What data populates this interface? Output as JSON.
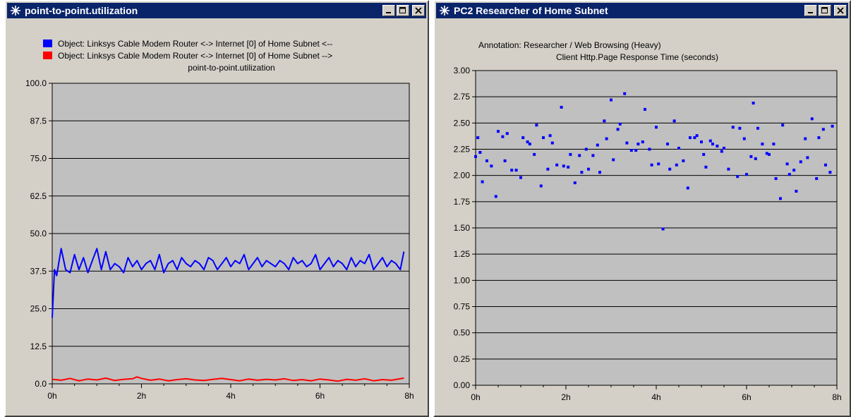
{
  "windows": [
    {
      "title": "point-to-point.utilization",
      "controls": [
        "minimize-icon",
        "maximize-icon",
        "close-icon"
      ],
      "legend": [
        {
          "label": "Object: Linksys Cable Modem Router <-> Internet [0] of Home Subnet <--",
          "color": "#0000ff"
        },
        {
          "label": "Object: Linksys Cable Modem Router <-> Internet [0] of Home Subnet -->",
          "color": "#ff0000"
        }
      ],
      "chart_title": "point-to-point.utilization"
    },
    {
      "title": "PC2 Researcher of Home Subnet",
      "controls": [
        "minimize-icon",
        "maximize-icon",
        "close-icon"
      ],
      "annotation": "Annotation: Researcher / Web Browsing (Heavy)",
      "chart_title": "Client Http.Page Response Time (seconds)"
    }
  ],
  "colors": {
    "plot_bg": "#c0c0c0",
    "window_bg": "#d4d0c8",
    "titlebar": "#0a246a",
    "blue": "#0000ff",
    "red": "#ff0000"
  },
  "chart_data": [
    {
      "type": "line",
      "title": "point-to-point.utilization",
      "xlabel": "",
      "ylabel": "",
      "x_tick_labels": [
        "0h",
        "2h",
        "4h",
        "6h",
        "8h"
      ],
      "y_tick_labels": [
        "0.0",
        "12.5",
        "25.0",
        "37.5",
        "50.0",
        "62.5",
        "75.0",
        "87.5",
        "100.0"
      ],
      "xlim": [
        0,
        8
      ],
      "ylim": [
        0,
        100
      ],
      "grid": "horizontal",
      "legend_position": "top",
      "series": [
        {
          "name": "Object: Linksys Cable Modem Router <-> Internet [0] of Home Subnet <--",
          "color": "#0000ff",
          "x": [
            0.0,
            0.05,
            0.1,
            0.2,
            0.3,
            0.4,
            0.5,
            0.6,
            0.7,
            0.8,
            0.9,
            1.0,
            1.1,
            1.2,
            1.3,
            1.4,
            1.5,
            1.6,
            1.7,
            1.8,
            1.9,
            2.0,
            2.1,
            2.2,
            2.3,
            2.4,
            2.5,
            2.6,
            2.7,
            2.8,
            2.9,
            3.0,
            3.1,
            3.2,
            3.3,
            3.4,
            3.5,
            3.6,
            3.7,
            3.8,
            3.9,
            4.0,
            4.1,
            4.2,
            4.3,
            4.4,
            4.5,
            4.6,
            4.7,
            4.8,
            4.9,
            5.0,
            5.1,
            5.2,
            5.3,
            5.4,
            5.5,
            5.6,
            5.7,
            5.8,
            5.9,
            6.0,
            6.1,
            6.2,
            6.3,
            6.4,
            6.5,
            6.6,
            6.7,
            6.8,
            6.9,
            7.0,
            7.1,
            7.2,
            7.3,
            7.4,
            7.5,
            7.6,
            7.7,
            7.8,
            7.88
          ],
          "y": [
            22,
            38,
            36,
            45,
            38,
            37,
            43,
            38,
            42,
            37,
            41,
            45,
            38,
            44,
            38,
            40,
            39,
            37,
            42,
            39,
            41,
            38,
            40,
            41,
            38,
            43,
            37,
            40,
            41,
            38,
            42,
            40,
            39,
            41,
            40,
            38,
            42,
            41,
            38,
            40,
            42,
            39,
            41,
            40,
            43,
            38,
            40,
            42,
            39,
            41,
            40,
            39,
            41,
            40,
            38,
            42,
            40,
            41,
            39,
            40,
            43,
            38,
            40,
            42,
            39,
            41,
            40,
            38,
            42,
            39,
            41,
            40,
            43,
            38,
            40,
            42,
            39,
            41,
            40,
            38,
            44
          ]
        },
        {
          "name": "Object: Linksys Cable Modem Router <-> Internet [0] of Home Subnet -->",
          "color": "#ff0000",
          "x": [
            0.0,
            0.2,
            0.4,
            0.6,
            0.8,
            1.0,
            1.2,
            1.4,
            1.6,
            1.8,
            1.9,
            2.0,
            2.2,
            2.4,
            2.6,
            2.8,
            3.0,
            3.2,
            3.4,
            3.6,
            3.8,
            4.0,
            4.2,
            4.4,
            4.6,
            4.8,
            5.0,
            5.2,
            5.4,
            5.6,
            5.8,
            6.0,
            6.2,
            6.4,
            6.6,
            6.8,
            7.0,
            7.2,
            7.4,
            7.6,
            7.88
          ],
          "y": [
            1.5,
            1.2,
            1.8,
            1.0,
            1.6,
            1.3,
            1.9,
            1.1,
            1.5,
            1.7,
            2.3,
            1.8,
            1.2,
            1.6,
            1.0,
            1.4,
            1.7,
            1.3,
            1.1,
            1.5,
            1.8,
            1.4,
            1.0,
            1.6,
            1.2,
            1.5,
            1.3,
            1.7,
            1.1,
            1.4,
            1.0,
            1.6,
            1.3,
            0.9,
            1.5,
            1.2,
            1.7,
            1.0,
            1.4,
            1.2,
            1.9
          ]
        }
      ]
    },
    {
      "type": "scatter",
      "title": "Client Http.Page Response Time (seconds)",
      "annotation": "Annotation: Researcher / Web Browsing (Heavy)",
      "xlabel": "",
      "ylabel": "",
      "x_tick_labels": [
        "0h",
        "2h",
        "4h",
        "6h",
        "8h"
      ],
      "y_tick_labels": [
        "0.00",
        "0.25",
        "0.50",
        "0.75",
        "1.00",
        "1.25",
        "1.50",
        "1.75",
        "2.00",
        "2.25",
        "2.50",
        "2.75",
        "3.00"
      ],
      "xlim": [
        0,
        8
      ],
      "ylim": [
        0,
        3
      ],
      "grid": "horizontal",
      "legend_position": "none",
      "series": [
        {
          "color": "#0000ff",
          "x": [
            0.0,
            0.05,
            0.1,
            0.15,
            0.25,
            0.35,
            0.45,
            0.5,
            0.6,
            0.65,
            0.7,
            0.8,
            0.9,
            1.0,
            1.05,
            1.15,
            1.2,
            1.3,
            1.35,
            1.45,
            1.5,
            1.6,
            1.65,
            1.7,
            1.8,
            1.9,
            1.95,
            2.05,
            2.1,
            2.2,
            2.3,
            2.35,
            2.45,
            2.5,
            2.6,
            2.7,
            2.75,
            2.85,
            2.9,
            3.0,
            3.05,
            3.15,
            3.2,
            3.3,
            3.35,
            3.45,
            3.55,
            3.6,
            3.7,
            3.75,
            3.85,
            3.9,
            4.0,
            4.05,
            4.15,
            4.25,
            4.3,
            4.4,
            4.45,
            4.5,
            4.6,
            4.7,
            4.75,
            4.85,
            4.9,
            5.0,
            5.05,
            5.1,
            5.2,
            5.25,
            5.35,
            5.45,
            5.5,
            5.6,
            5.7,
            5.8,
            5.85,
            5.95,
            6.0,
            6.1,
            6.15,
            6.2,
            6.25,
            6.35,
            6.45,
            6.5,
            6.6,
            6.65,
            6.75,
            6.8,
            6.9,
            6.95,
            7.05,
            7.1,
            7.2,
            7.3,
            7.35,
            7.45,
            7.55,
            7.6,
            7.7,
            7.75,
            7.85,
            7.9
          ],
          "y": [
            2.18,
            2.36,
            2.22,
            1.94,
            2.14,
            2.09,
            1.8,
            2.42,
            2.37,
            2.14,
            2.4,
            2.05,
            2.05,
            1.98,
            2.36,
            2.32,
            2.3,
            2.2,
            2.48,
            1.9,
            2.36,
            2.06,
            2.38,
            2.31,
            2.1,
            2.65,
            2.09,
            2.08,
            2.2,
            1.93,
            2.19,
            2.03,
            2.25,
            2.06,
            2.19,
            2.29,
            2.03,
            2.52,
            2.35,
            2.72,
            2.15,
            2.44,
            2.49,
            2.78,
            2.31,
            2.24,
            2.24,
            2.3,
            2.32,
            2.63,
            2.25,
            2.1,
            2.46,
            2.11,
            1.49,
            2.3,
            2.06,
            2.52,
            2.1,
            2.26,
            2.14,
            1.88,
            2.36,
            2.36,
            2.38,
            2.32,
            2.2,
            2.08,
            2.33,
            2.3,
            2.28,
            2.23,
            2.26,
            2.06,
            2.46,
            1.99,
            2.45,
            2.35,
            2.01,
            2.18,
            2.69,
            2.16,
            2.45,
            2.3,
            2.21,
            2.2,
            2.3,
            1.97,
            1.78,
            2.48,
            2.11,
            2.01,
            2.05,
            1.85,
            2.13,
            2.35,
            2.17,
            2.54,
            1.97,
            2.36,
            2.44,
            2.1,
            2.03,
            2.47
          ]
        }
      ]
    }
  ]
}
